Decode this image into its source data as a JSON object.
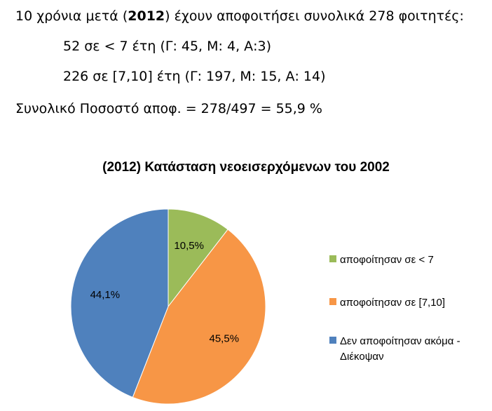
{
  "intro": {
    "line1_pre": "10 χρόνια μετά (",
    "line1_bold": "2012",
    "line1_post": ") έχουν αποφοιτήσει συνολικά 278 φοιτητές:",
    "line2": "52 σε < 7 έτη (Γ: 45, Μ: 4, Α:3)",
    "line3": "226 σε [7,10] έτη (Γ: 197, Μ: 15, Α: 14)",
    "line4": "Συνολικό Ποσοστό αποφ. = 278/497 = 55,9 %"
  },
  "chart_data": {
    "type": "pie",
    "title": "(2012) Κατάσταση νεοεισερχόμενων του 2002",
    "legend_position": "right",
    "slices": [
      {
        "label": "αποφοίτησαν σε < 7",
        "value": 10.5,
        "display": "10,5%",
        "color": "#9bbb59"
      },
      {
        "label": "αποφοίτησαν σε [7,10]",
        "value": 45.5,
        "display": "45,5%",
        "color": "#f79646"
      },
      {
        "label": "Δεν αποφοίτησαν ακόμα - Διέκοψαν",
        "label_line1": "Δεν αποφοίτησαν ακόμα -",
        "label_line2": "Διέκοψαν",
        "value": 44.1,
        "display": "44,1%",
        "color": "#4f81bd"
      }
    ]
  }
}
